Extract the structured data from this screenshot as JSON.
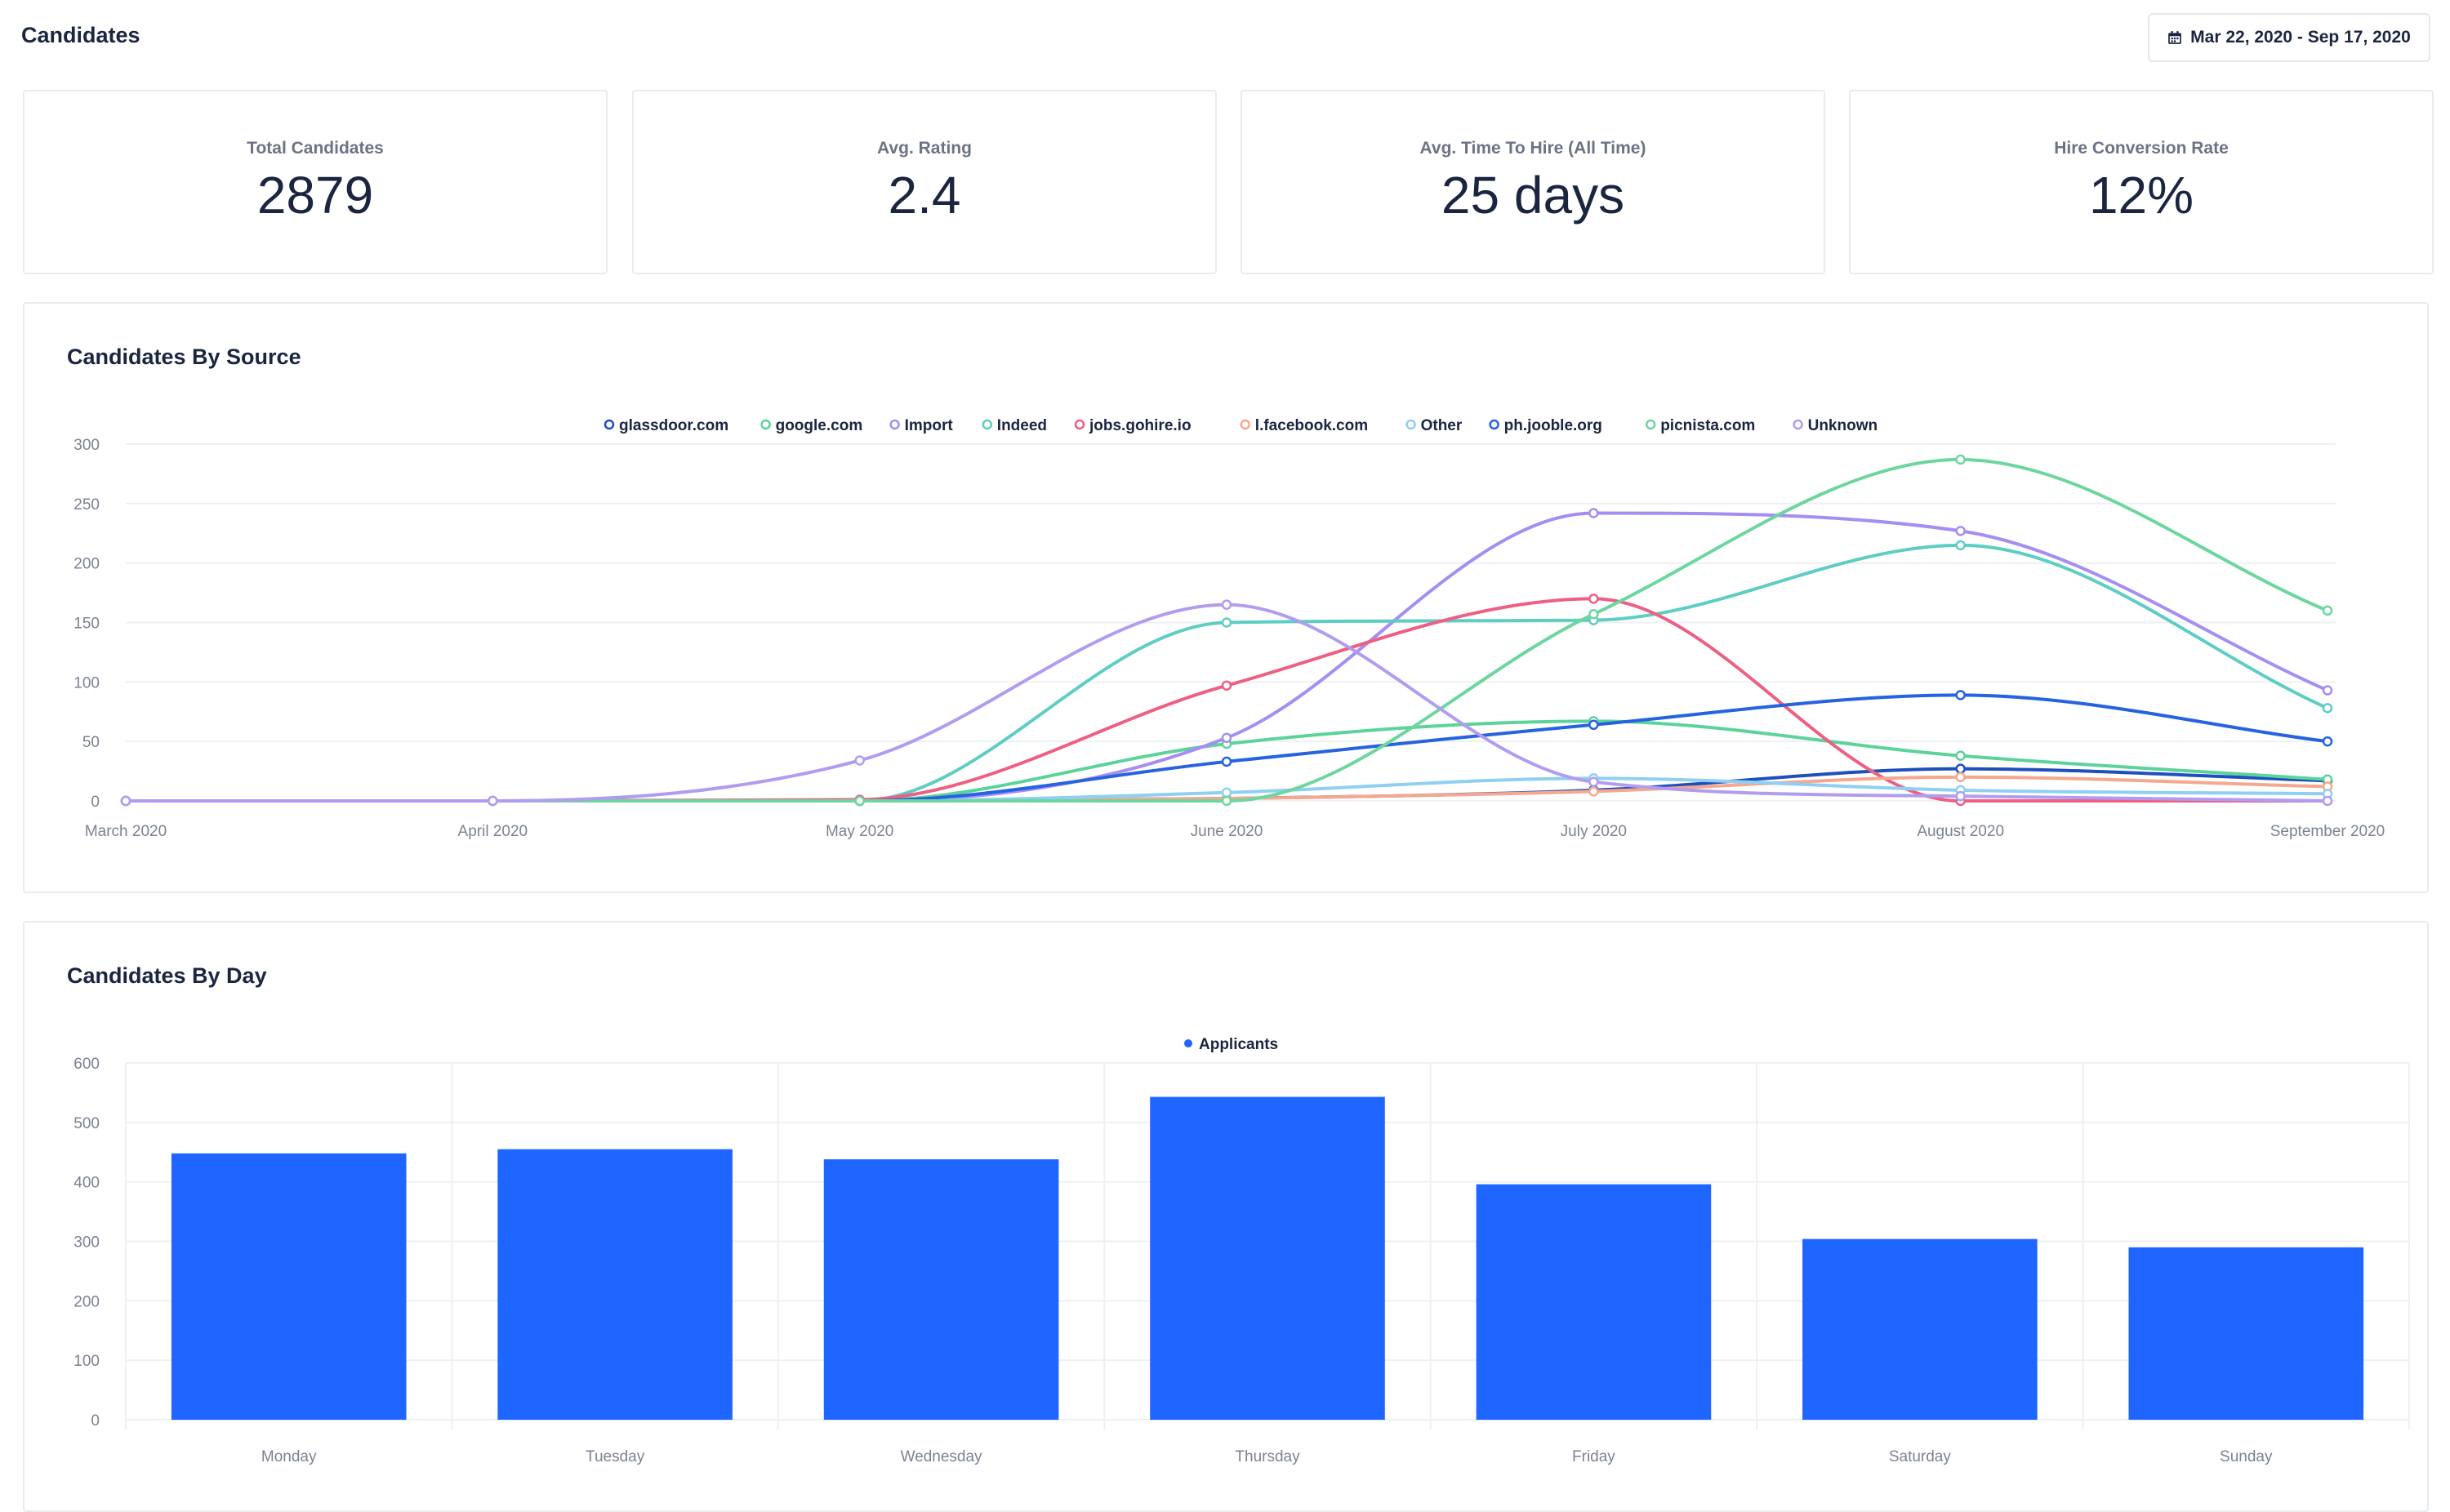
{
  "header": {
    "title": "Candidates",
    "date_range": "Mar 22, 2020 - Sep 17, 2020"
  },
  "stats": [
    {
      "label": "Total Candidates",
      "value": "2879"
    },
    {
      "label": "Avg. Rating",
      "value": "2.4"
    },
    {
      "label": "Avg. Time To Hire (All Time)",
      "value": "25 days"
    },
    {
      "label": "Hire Conversion Rate",
      "value": "12%"
    }
  ],
  "colors": {
    "bar": "#1e66ff",
    "text": "#1b2540",
    "grid": "#eef0f3",
    "axis_text": "#7b8291"
  },
  "chart_data": [
    {
      "type": "line",
      "title": "Candidates By Source",
      "x": [
        "March 2020",
        "April 2020",
        "May 2020",
        "June 2020",
        "July 2020",
        "August 2020",
        "September 2020"
      ],
      "ylim": [
        0,
        300
      ],
      "yticks": [
        0,
        50,
        100,
        150,
        200,
        250,
        300
      ],
      "grid": true,
      "legend_position": "top-center",
      "series": [
        {
          "name": "glassdoor.com",
          "color": "#1f4fbf",
          "values": [
            0,
            0,
            0,
            2,
            9,
            27,
            17
          ]
        },
        {
          "name": "google.com",
          "color": "#5cd39b",
          "values": [
            0,
            0,
            0,
            48,
            67,
            38,
            18
          ]
        },
        {
          "name": "Import",
          "color": "#a58ef2",
          "values": [
            0,
            0,
            0,
            53,
            242,
            227,
            93
          ]
        },
        {
          "name": "Indeed",
          "color": "#5ecdc4",
          "values": [
            0,
            0,
            0,
            150,
            152,
            215,
            78
          ]
        },
        {
          "name": "jobs.gohire.io",
          "color": "#ee5f82",
          "values": [
            0,
            0,
            1,
            97,
            170,
            0,
            0
          ]
        },
        {
          "name": "l.facebook.com",
          "color": "#f5a88e",
          "values": [
            0,
            0,
            0,
            2,
            8,
            20,
            12
          ]
        },
        {
          "name": "Other",
          "color": "#8fd0f2",
          "values": [
            0,
            0,
            0,
            7,
            19,
            9,
            6
          ]
        },
        {
          "name": "ph.jooble.org",
          "color": "#2563e0",
          "values": [
            0,
            0,
            0,
            33,
            64,
            89,
            50
          ]
        },
        {
          "name": "picnista.com",
          "color": "#6dd69e",
          "values": [
            0,
            0,
            0,
            0,
            157,
            287,
            160
          ]
        },
        {
          "name": "Unknown",
          "color": "#b29cf0",
          "values": [
            0,
            0,
            34,
            165,
            16,
            4,
            0
          ]
        }
      ]
    },
    {
      "type": "bar",
      "title": "Candidates By Day",
      "categories": [
        "Monday",
        "Tuesday",
        "Wednesday",
        "Thursday",
        "Friday",
        "Saturday",
        "Sunday"
      ],
      "ylim": [
        0,
        600
      ],
      "yticks": [
        0,
        100,
        200,
        300,
        400,
        500,
        600
      ],
      "grid": true,
      "legend_position": "top-center",
      "series": [
        {
          "name": "Applicants",
          "color": "#1e66ff",
          "values": [
            448,
            455,
            438,
            543,
            396,
            304,
            290
          ]
        }
      ]
    }
  ]
}
